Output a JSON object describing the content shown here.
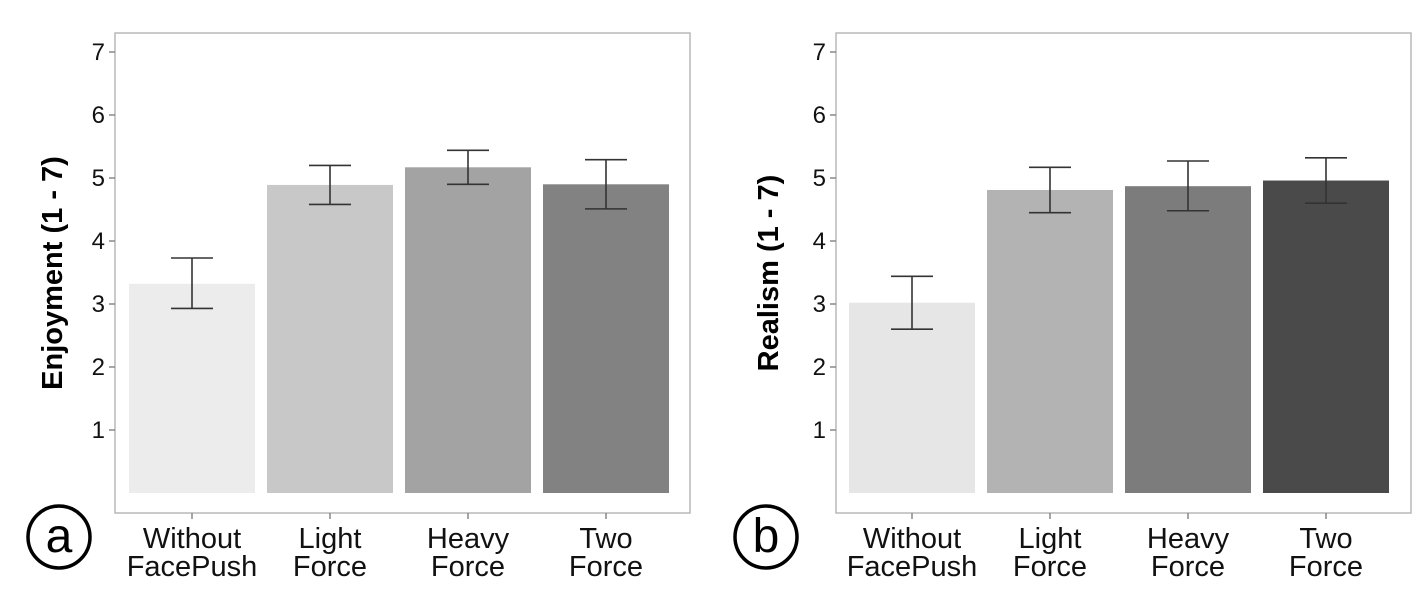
{
  "chart_data": [
    {
      "type": "bar",
      "panel_label": "a",
      "ylabel": "Enjoyment  (1 - 7)",
      "categories": [
        "Without\nFacePush",
        "Light\nForce",
        "Heavy\nForce",
        "Two\nForce"
      ],
      "values": [
        3.32,
        4.89,
        5.17,
        4.9
      ],
      "error_low": [
        2.93,
        4.58,
        4.9,
        4.51
      ],
      "error_high": [
        3.73,
        5.2,
        5.44,
        5.29
      ],
      "colors": [
        "#ececec",
        "#c8c8c8",
        "#a3a3a3",
        "#828282"
      ],
      "ylim": [
        0,
        7.3
      ],
      "yticks": [
        1,
        2,
        3,
        4,
        5,
        6,
        7
      ],
      "grid": false,
      "legend": "none"
    },
    {
      "type": "bar",
      "panel_label": "b",
      "ylabel": "Realism (1 - 7)",
      "categories": [
        "Without\nFacePush",
        "Light\nForce",
        "Heavy\nForce",
        "Two\nForce"
      ],
      "values": [
        3.02,
        4.81,
        4.87,
        4.96
      ],
      "error_low": [
        2.6,
        4.45,
        4.48,
        4.6
      ],
      "error_high": [
        3.44,
        5.17,
        5.27,
        5.32
      ],
      "colors": [
        "#e6e6e6",
        "#b3b3b3",
        "#7c7c7c",
        "#4a4a4a"
      ],
      "ylim": [
        0,
        7.3
      ],
      "yticks": [
        1,
        2,
        3,
        4,
        5,
        6,
        7
      ],
      "grid": false,
      "legend": "none"
    }
  ]
}
